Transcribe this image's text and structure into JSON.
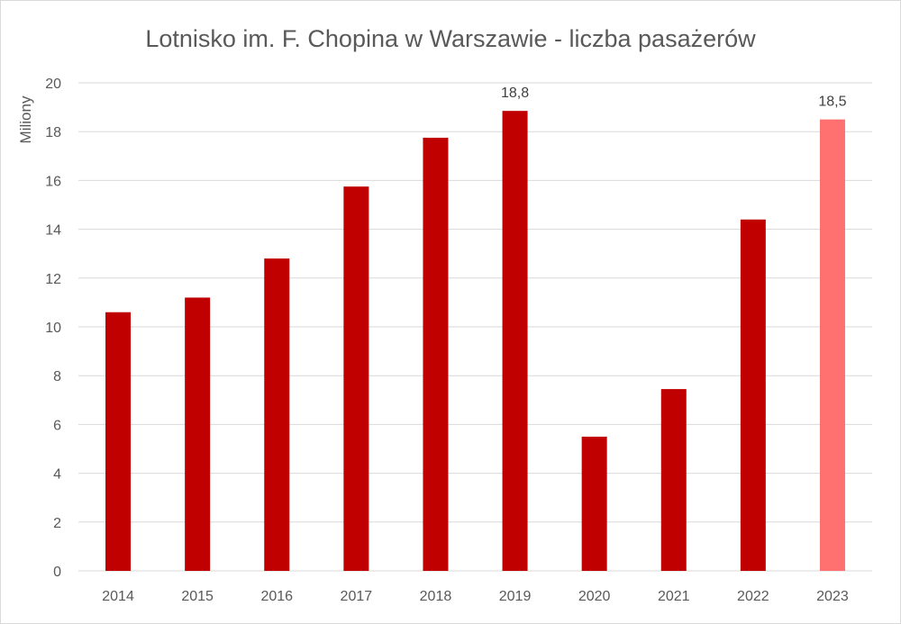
{
  "chart_data": {
    "type": "bar",
    "title": "Lotnisko im. F. Chopina w Warszawie - liczba pasażerów",
    "ylabel": "Miliony",
    "xlabel": "",
    "categories": [
      "2014",
      "2015",
      "2016",
      "2017",
      "2018",
      "2019",
      "2020",
      "2021",
      "2022",
      "2023"
    ],
    "values": [
      10.6,
      11.2,
      12.8,
      15.75,
      17.75,
      18.85,
      5.5,
      7.45,
      14.4,
      18.5
    ],
    "bar_colors": [
      "#c00000",
      "#c00000",
      "#c00000",
      "#c00000",
      "#c00000",
      "#c00000",
      "#c00000",
      "#c00000",
      "#c00000",
      "#ff7070"
    ],
    "data_labels": [
      "",
      "",
      "",
      "",
      "",
      "18,8",
      "",
      "",
      "",
      "18,5"
    ],
    "ylim": [
      0,
      20
    ],
    "yticks": [
      0,
      2,
      4,
      6,
      8,
      10,
      12,
      14,
      16,
      18,
      20
    ],
    "grid": true,
    "gridline_color": "#d9d9d9"
  }
}
